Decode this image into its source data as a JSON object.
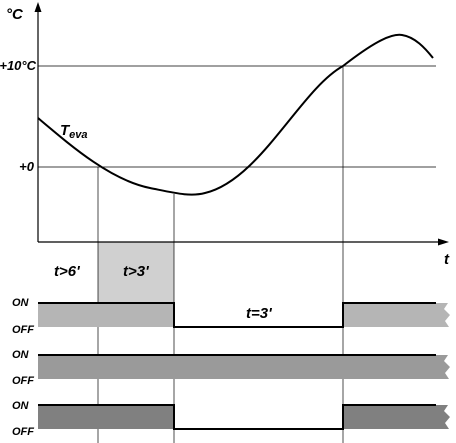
{
  "temperature_chart": {
    "y_unit": "°C",
    "x_label": "t",
    "y_ticks": [
      "+10°C",
      "+0"
    ],
    "curve_label": "T",
    "curve_label_sub": "eva"
  },
  "timing": {
    "interval_labels": [
      "t>6'",
      "t>3'"
    ],
    "off_duration_label": "t=3'",
    "rows": [
      {
        "on": "ON",
        "off": "OFF",
        "color": "#b5b5b5"
      },
      {
        "on": "ON",
        "off": "OFF",
        "color": "#9a9a9a"
      },
      {
        "on": "ON",
        "off": "OFF",
        "color": "#808080"
      }
    ],
    "highlight_color": "#d0d0d0"
  }
}
